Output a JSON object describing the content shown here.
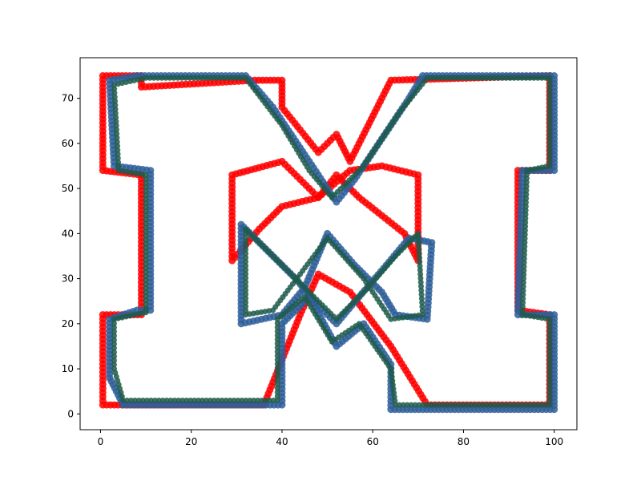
{
  "chart_data": {
    "type": "scatter",
    "title": "",
    "xlabel": "",
    "ylabel": "",
    "xlim": [
      -4.5,
      105
    ],
    "ylim": [
      -3.5,
      79
    ],
    "x_ticks": [
      0,
      20,
      40,
      60,
      80,
      100
    ],
    "y_ticks": [
      0,
      10,
      20,
      30,
      40,
      50,
      60,
      70
    ],
    "grid": false,
    "legend": "none",
    "series": [
      {
        "color": "#ff0000",
        "marker_size": 8,
        "paths": [
          [
            [
              0.5,
              75.0
            ],
            [
              9.0,
              75.0
            ],
            [
              9.0,
              72.5
            ],
            [
              34.0,
              74.0
            ],
            [
              40.0,
              74.0
            ],
            [
              40.0,
              68.0
            ],
            [
              48.0,
              58.0
            ],
            [
              52.0,
              62.0
            ],
            [
              55.0,
              56.0
            ],
            [
              64.0,
              74.0
            ],
            [
              99.0,
              75.0
            ],
            [
              99.0,
              68.0
            ],
            [
              99.0,
              54.0
            ],
            [
              92.0,
              54.0
            ],
            [
              92.0,
              30.0
            ],
            [
              92.0,
              23.0
            ],
            [
              99.0,
              22.0
            ],
            [
              99.0,
              2.0
            ],
            [
              79.0,
              2.0
            ],
            [
              72.0,
              2.0
            ],
            [
              64.0,
              15.0
            ],
            [
              55.0,
              27.0
            ],
            [
              48.0,
              31.0
            ],
            [
              44.0,
              22.0
            ],
            [
              40.0,
              12.0
            ],
            [
              36.0,
              2.0
            ],
            [
              9.0,
              2.0
            ],
            [
              0.5,
              2.0
            ],
            [
              0.5,
              22.0
            ],
            [
              9.0,
              22.0
            ],
            [
              9.0,
              40.0
            ],
            [
              9.0,
              53.0
            ],
            [
              0.5,
              54.0
            ],
            [
              0.5,
              75.0
            ]
          ],
          [
            [
              29.0,
              34.0
            ],
            [
              29.0,
              53.0
            ],
            [
              40.0,
              56.0
            ],
            [
              44.0,
              52.0
            ],
            [
              48.0,
              48.0
            ],
            [
              55.0,
              54.0
            ],
            [
              62.0,
              55.0
            ],
            [
              70.0,
              53.0
            ],
            [
              70.0,
              34.0
            ],
            [
              67.0,
              40.0
            ],
            [
              62.0,
              44.0
            ],
            [
              57.0,
              48.0
            ],
            [
              52.0,
              53.0
            ],
            [
              48.0,
              48.0
            ],
            [
              40.0,
              46.0
            ],
            [
              35.0,
              41.0
            ],
            [
              29.0,
              34.0
            ]
          ]
        ]
      },
      {
        "color": "#2f5f9a",
        "marker_size": 8,
        "paths": [
          [
            [
              2.0,
              74.0
            ],
            [
              8.0,
              75.0
            ],
            [
              32.0,
              75.0
            ],
            [
              38.0,
              68.0
            ],
            [
              44.0,
              59.0
            ],
            [
              52.0,
              47.0
            ],
            [
              56.0,
              52.0
            ],
            [
              62.0,
              61.0
            ],
            [
              68.0,
              70.0
            ],
            [
              71.0,
              75.0
            ],
            [
              100.0,
              75.0
            ],
            [
              100.0,
              54.0
            ],
            [
              93.0,
              54.0
            ],
            [
              92.0,
              22.0
            ],
            [
              100.0,
              22.0
            ],
            [
              100.0,
              1.0
            ],
            [
              64.0,
              1.0
            ],
            [
              64.0,
              11.0
            ],
            [
              58.0,
              20.0
            ],
            [
              52.0,
              15.0
            ],
            [
              46.0,
              26.0
            ],
            [
              40.0,
              20.0
            ],
            [
              40.0,
              2.0
            ],
            [
              5.0,
              2.0
            ],
            [
              2.0,
              8.0
            ],
            [
              2.0,
              21.0
            ],
            [
              8.0,
              23.0
            ],
            [
              11.0,
              23.0
            ],
            [
              11.0,
              54.0
            ],
            [
              3.0,
              55.0
            ],
            [
              2.0,
              74.0
            ]
          ],
          [
            [
              31.0,
              20.0
            ],
            [
              31.0,
              42.0
            ],
            [
              37.0,
              36.0
            ],
            [
              43.0,
              30.0
            ],
            [
              48.0,
              24.0
            ],
            [
              52.0,
              20.0
            ],
            [
              57.0,
              26.0
            ],
            [
              63.0,
              33.0
            ],
            [
              68.0,
              39.0
            ],
            [
              73.0,
              38.0
            ],
            [
              72.0,
              21.0
            ],
            [
              65.0,
              22.0
            ],
            [
              62.0,
              27.0
            ],
            [
              56.0,
              33.0
            ],
            [
              50.0,
              40.0
            ],
            [
              45.0,
              28.0
            ],
            [
              40.0,
              22.0
            ],
            [
              31.0,
              20.0
            ]
          ]
        ]
      },
      {
        "color": "#1f5a4a",
        "marker_size": 6,
        "paths": [
          [
            [
              3.0,
              73.0
            ],
            [
              10.0,
              74.5
            ],
            [
              32.0,
              74.5
            ],
            [
              40.0,
              64.0
            ],
            [
              46.0,
              54.0
            ],
            [
              51.0,
              48.0
            ],
            [
              58.0,
              55.0
            ],
            [
              66.0,
              67.0
            ],
            [
              72.0,
              74.5
            ],
            [
              99.0,
              74.5
            ],
            [
              99.0,
              55.0
            ],
            [
              94.0,
              54.0
            ],
            [
              93.0,
              22.0
            ],
            [
              99.0,
              21.0
            ],
            [
              99.0,
              2.0
            ],
            [
              65.0,
              2.0
            ],
            [
              64.0,
              10.0
            ],
            [
              57.0,
              20.0
            ],
            [
              51.0,
              16.0
            ],
            [
              45.0,
              26.0
            ],
            [
              39.0,
              21.0
            ],
            [
              39.0,
              3.0
            ],
            [
              5.0,
              3.0
            ],
            [
              3.0,
              10.0
            ],
            [
              3.0,
              21.0
            ],
            [
              10.0,
              22.5
            ],
            [
              10.0,
              53.0
            ],
            [
              4.0,
              54.0
            ],
            [
              3.0,
              73.0
            ]
          ],
          [
            [
              32.0,
              22.0
            ],
            [
              32.0,
              41.0
            ],
            [
              40.0,
              33.0
            ],
            [
              47.0,
              26.0
            ],
            [
              52.0,
              21.0
            ],
            [
              58.0,
              27.0
            ],
            [
              65.0,
              35.0
            ],
            [
              70.0,
              40.0
            ],
            [
              71.0,
              22.0
            ],
            [
              64.0,
              21.0
            ],
            [
              58.0,
              30.0
            ],
            [
              50.0,
              39.0
            ],
            [
              44.0,
              31.0
            ],
            [
              38.0,
              23.0
            ],
            [
              32.0,
              22.0
            ]
          ]
        ]
      }
    ]
  }
}
